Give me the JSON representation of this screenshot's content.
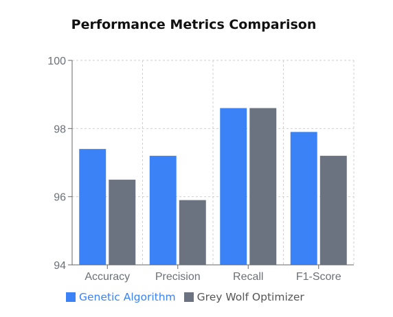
{
  "chart_data": {
    "type": "bar",
    "title": "Performance Metrics Comparison",
    "xlabel": "",
    "ylabel": "",
    "categories": [
      "Accuracy",
      "Precision",
      "Recall",
      "F1-Score"
    ],
    "ylim": [
      94,
      100
    ],
    "yticks": [
      94,
      96,
      98,
      100
    ],
    "grid": true,
    "legend_position": "bottom",
    "series": [
      {
        "name": "Genetic Algorithm",
        "color": "#3b82f6",
        "values": [
          97.4,
          97.2,
          98.6,
          97.9
        ]
      },
      {
        "name": "Grey Wolf Optimizer",
        "color": "#6b7280",
        "values": [
          96.5,
          95.9,
          98.6,
          97.2
        ]
      }
    ]
  }
}
